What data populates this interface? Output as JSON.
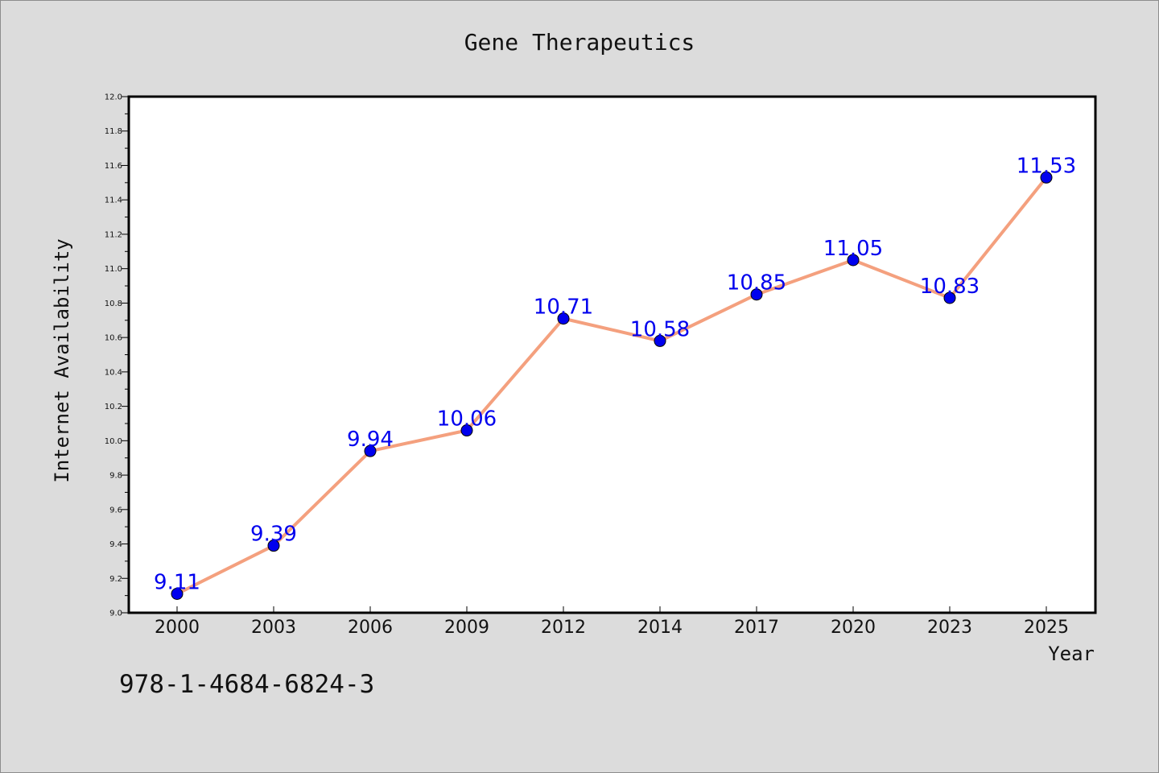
{
  "chart_data": {
    "type": "line",
    "title": "Gene Therapeutics",
    "xlabel": "Year",
    "ylabel": "Internet Availability",
    "categories": [
      "2000",
      "2003",
      "2006",
      "2009",
      "2012",
      "2014",
      "2017",
      "2020",
      "2023",
      "2025"
    ],
    "series": [
      {
        "values": [
          9.11,
          9.39,
          9.94,
          10.06,
          10.71,
          10.58,
          10.85,
          11.05,
          10.83,
          11.53
        ]
      }
    ],
    "data_labels": [
      "9.11",
      "9.39",
      "9.94",
      "10.06",
      "10.71",
      "10.58",
      "10.85",
      "11.05",
      "10.83",
      "11.53"
    ],
    "ylim": [
      9.0,
      12.0
    ],
    "yticks": [
      "9.0",
      "9.2",
      "9.4",
      "9.6",
      "9.8",
      "10.0",
      "10.2",
      "10.4",
      "10.6",
      "10.8",
      "11.0",
      "11.2",
      "11.4",
      "11.6",
      "11.8",
      "12.0"
    ],
    "grid": false,
    "colors": {
      "line": "#f4a07e",
      "marker": "#0000ee",
      "label": "#0000ee",
      "plot_bg": "#ffffff",
      "figure_bg": "#dcdcdc"
    }
  },
  "footer": {
    "isbn": "978-1-4684-6824-3"
  }
}
